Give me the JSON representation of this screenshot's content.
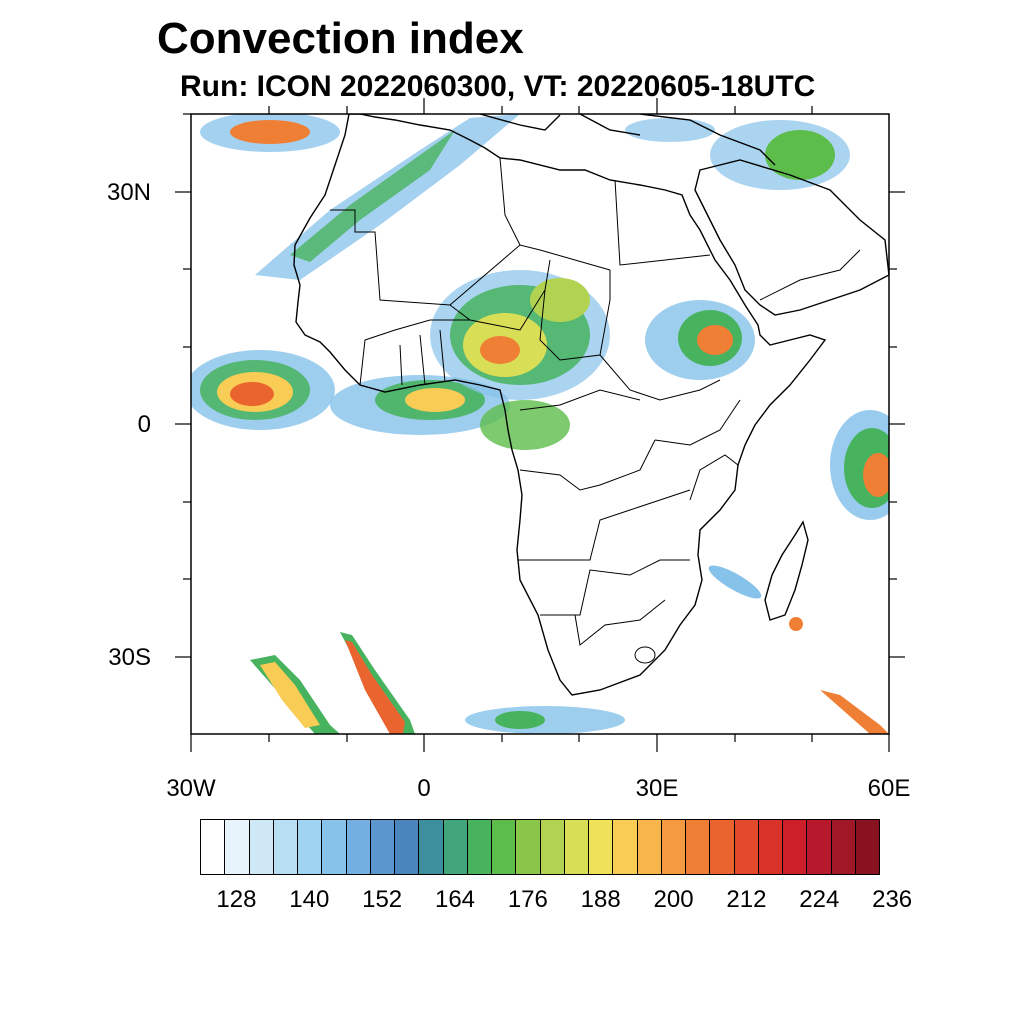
{
  "title": "Convection index",
  "subtitle": "Run: ICON 2022060300,  VT: 20220605-18UTC",
  "map": {
    "lat_labels": [
      "30N",
      "0",
      "30S"
    ],
    "lon_labels": [
      "30W",
      "0",
      "30E",
      "60E"
    ],
    "extent": {
      "lon_min": -30,
      "lon_max": 60,
      "lat_min": -40,
      "lat_max": 40
    }
  },
  "colorbar": {
    "colors": [
      "#ffffff",
      "#e8f4fb",
      "#cfe8f5",
      "#b8def3",
      "#9fd3f2",
      "#86c2ea",
      "#73afe0",
      "#5b96cf",
      "#4a86bd",
      "#3d8f9d",
      "#42a67c",
      "#47b35e",
      "#5dbd4b",
      "#8ac64a",
      "#b2d252",
      "#d9de57",
      "#efe15a",
      "#f8cc55",
      "#f7b54b",
      "#f59a40",
      "#f07f36",
      "#ea6430",
      "#e24a2b",
      "#d93228",
      "#cc1f2a",
      "#b8182b",
      "#a01727",
      "#891221"
    ],
    "labels": [
      "128",
      "140",
      "152",
      "164",
      "176",
      "188",
      "200",
      "212",
      "224",
      "236"
    ]
  }
}
